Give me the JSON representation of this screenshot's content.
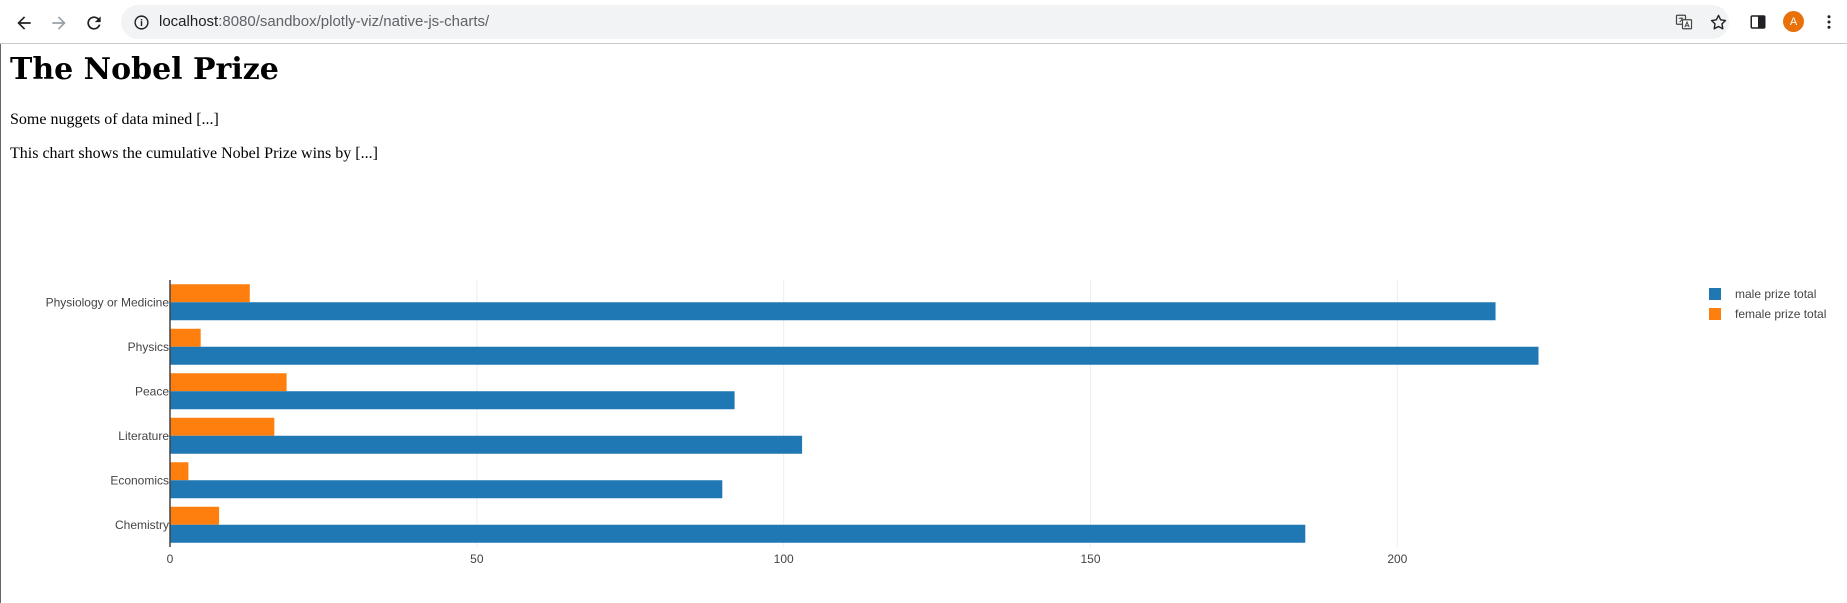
{
  "browser": {
    "url_host": "localhost",
    "url_rest": ":8080/sandbox/plotly-viz/native-js-charts/",
    "avatar_letter": "A"
  },
  "page": {
    "title": "The Nobel Prize",
    "paragraph1": "Some nuggets of data mined [...]",
    "paragraph2": "This chart shows the cumulative Nobel Prize wins by [...]"
  },
  "chart_data": {
    "type": "bar",
    "orientation": "horizontal",
    "categories": [
      "Chemistry",
      "Economics",
      "Literature",
      "Peace",
      "Physics",
      "Physiology or Medicine"
    ],
    "series": [
      {
        "name": "male prize total",
        "color": "#1f77b4",
        "values": [
          185,
          90,
          103,
          92,
          223,
          216
        ]
      },
      {
        "name": "female prize total",
        "color": "#ff7f0e",
        "values": [
          8,
          3,
          17,
          19,
          5,
          13
        ]
      }
    ],
    "xticks": [
      0,
      50,
      100,
      150,
      200
    ],
    "xlim": [
      0,
      234
    ],
    "grid": true,
    "legend_position": "top-right"
  }
}
